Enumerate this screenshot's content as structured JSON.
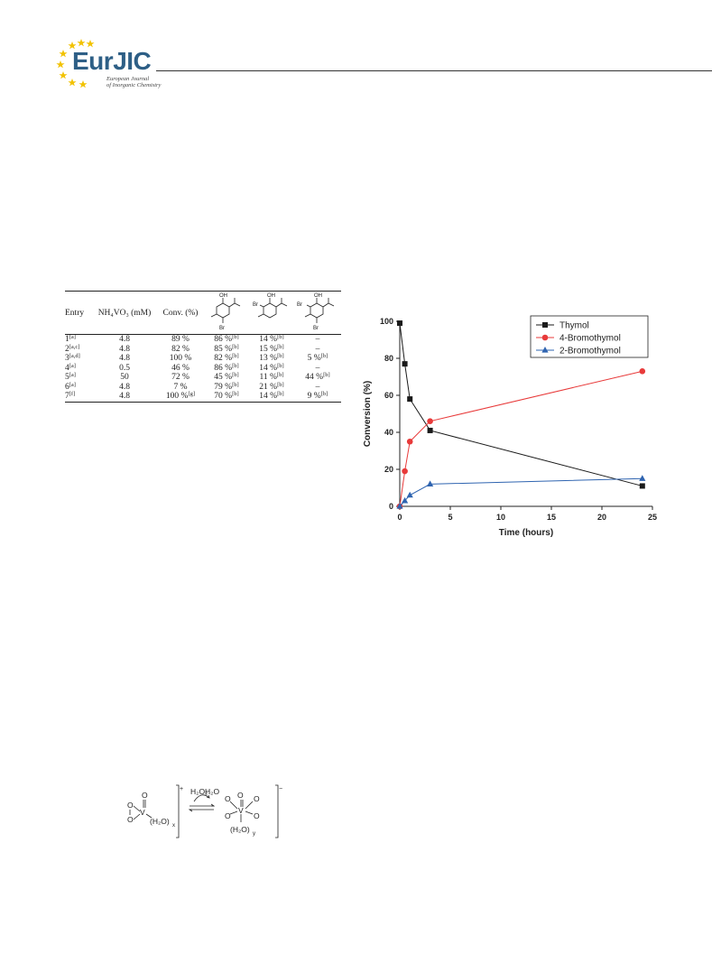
{
  "header": {
    "logo_main": "Eur",
    "logo_accent": "JIC",
    "logo_sub_line1": "European Journal",
    "logo_sub_line2": "of Inorganic Chemistry"
  },
  "table": {
    "headers": {
      "entry": "Entry",
      "reagent": "NH₄VO₃ (mM)",
      "conv": "Conv. (%)"
    },
    "rows": [
      {
        "entry": "1",
        "entry_note": "[a]",
        "conc": "4.8",
        "conv": "89 %",
        "conv_note": "",
        "p1": "86 %",
        "p1_note": "[b]",
        "p2": "14 %",
        "p2_note": "[b]",
        "p3": "–",
        "p3_note": ""
      },
      {
        "entry": "2",
        "entry_note": "[a,c]",
        "conc": "4.8",
        "conv": "82 %",
        "conv_note": "",
        "p1": "85 %",
        "p1_note": "[b]",
        "p2": "15 %",
        "p2_note": "[b]",
        "p3": "–",
        "p3_note": ""
      },
      {
        "entry": "3",
        "entry_note": "[a,d]",
        "conc": "4.8",
        "conv": "100 %",
        "conv_note": "",
        "p1": "82 %",
        "p1_note": "[b]",
        "p2": "13 %",
        "p2_note": "[b]",
        "p3": "5 %",
        "p3_note": "[b]"
      },
      {
        "entry": "4",
        "entry_note": "[a]",
        "conc": "0.5",
        "conv": "46 %",
        "conv_note": "",
        "p1": "86 %",
        "p1_note": "[b]",
        "p2": "14 %",
        "p2_note": "[b]",
        "p3": "–",
        "p3_note": ""
      },
      {
        "entry": "5",
        "entry_note": "[a]",
        "conc": "50",
        "conv": "72 %",
        "conv_note": "",
        "p1": "45 %",
        "p1_note": "[b]",
        "p2": "11 %",
        "p2_note": "[b]",
        "p3": "44  %",
        "p3_note": "[b]"
      },
      {
        "entry": "6",
        "entry_note": "[a]",
        "conc": "4.8",
        "conv": "7 %",
        "conv_note": "",
        "p1": "79 %",
        "p1_note": "[b]",
        "p2": "21 %",
        "p2_note": "[b]",
        "p3": "–",
        "p3_note": ""
      },
      {
        "entry": "7",
        "entry_note": "[f]",
        "conc": "4.8",
        "conv": "100 %",
        "conv_note": "[g]",
        "p1": "70 %",
        "p1_note": "[b]",
        "p2": "14 %",
        "p2_note": "[b]",
        "p3": "9 %",
        "p3_note": "[b]"
      }
    ],
    "structure_labels": {
      "oh": "OH",
      "br": "Br"
    }
  },
  "chart_data": {
    "type": "line",
    "xlabel": "Time (hours)",
    "ylabel": "Conversion (%)",
    "xlim": [
      0,
      25
    ],
    "ylim": [
      0,
      100
    ],
    "xticks": [
      0,
      5,
      10,
      15,
      20,
      25
    ],
    "yticks": [
      0,
      20,
      40,
      60,
      80,
      100
    ],
    "legend_position": "top-right",
    "series": [
      {
        "name": "Thymol",
        "color": "#1a1a1a",
        "marker": "square",
        "points": [
          [
            0,
            99
          ],
          [
            0.5,
            77
          ],
          [
            1,
            58
          ],
          [
            3,
            41
          ],
          [
            24,
            11
          ]
        ]
      },
      {
        "name": "4-Bromothymol",
        "color": "#e83a3a",
        "marker": "circle",
        "points": [
          [
            0,
            0
          ],
          [
            0.5,
            19
          ],
          [
            1,
            35
          ],
          [
            3,
            46
          ],
          [
            24,
            73
          ]
        ]
      },
      {
        "name": "2-Bromothymol",
        "color": "#2f64b0",
        "marker": "triangle",
        "points": [
          [
            0,
            0
          ],
          [
            0.5,
            3
          ],
          [
            1,
            6
          ],
          [
            3,
            12
          ],
          [
            24,
            15
          ]
        ]
      }
    ]
  },
  "scheme": {
    "reagent": "H₂O₂",
    "product": "H₂O",
    "left_ligand": "(H₂O)",
    "left_sub": "x",
    "right_ligand": "(H₂O)",
    "right_sub": "y",
    "charge_left": "+",
    "charge_right": "−",
    "atom_v": "V",
    "atom_o": "O"
  }
}
